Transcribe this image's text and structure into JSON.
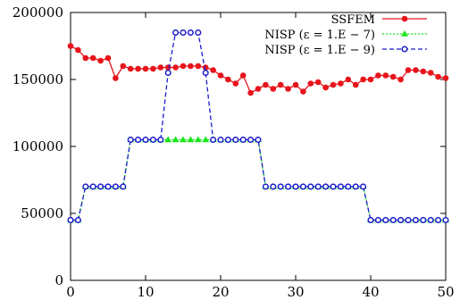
{
  "chart_data": {
    "type": "line",
    "title": "",
    "xlabel": "",
    "ylabel": "",
    "xlim": [
      0,
      50
    ],
    "ylim": [
      0,
      200000
    ],
    "xticks": [
      0,
      10,
      20,
      30,
      40,
      50
    ],
    "yticks": [
      0,
      50000,
      100000,
      150000,
      200000
    ],
    "xtick_labels": [
      "0",
      "10",
      "20",
      "30",
      "40",
      "50"
    ],
    "ytick_labels": [
      "0",
      "50000",
      "100000",
      "150000",
      "200000"
    ],
    "grid": false,
    "legend_position": "top-right",
    "series": [
      {
        "name": "SSFEM",
        "color": "#e8141c",
        "marker": "filled-circle",
        "line": "solid",
        "x": [
          0,
          1,
          2,
          3,
          4,
          5,
          6,
          7,
          8,
          9,
          10,
          11,
          12,
          13,
          14,
          15,
          16,
          17,
          18,
          19,
          20,
          21,
          22,
          23,
          24,
          25,
          26,
          27,
          28,
          29,
          30,
          31,
          32,
          33,
          34,
          35,
          36,
          37,
          38,
          39,
          40,
          41,
          42,
          43,
          44,
          45,
          46,
          47,
          48,
          49,
          50
        ],
        "y": [
          175000,
          172000,
          166000,
          166000,
          164000,
          166000,
          151000,
          160000,
          158000,
          158000,
          158000,
          158000,
          159000,
          159000,
          159000,
          160000,
          160000,
          160000,
          159000,
          157000,
          153000,
          150000,
          147000,
          153000,
          140000,
          143000,
          146000,
          143000,
          146000,
          143000,
          146000,
          141000,
          147000,
          148000,
          144000,
          146000,
          147000,
          150000,
          146000,
          150000,
          150000,
          153000,
          153000,
          152000,
          150000,
          157000,
          157000,
          156000,
          155000,
          152000,
          151000
        ]
      },
      {
        "name": "NISP (ε = 1.E − 7)",
        "color": "#19e619",
        "marker": "filled-triangle",
        "line": "dotted",
        "x": [
          0,
          1,
          2,
          3,
          4,
          5,
          6,
          7,
          8,
          9,
          10,
          11,
          12,
          13,
          14,
          15,
          16,
          17,
          18,
          19,
          20,
          21,
          22,
          23,
          24,
          25,
          26,
          27,
          28,
          29,
          30,
          31,
          32,
          33,
          34,
          35,
          36,
          37,
          38,
          39,
          40,
          41,
          42,
          43,
          44,
          45,
          46,
          47,
          48,
          49,
          50
        ],
        "y": [
          45000,
          45000,
          70000,
          70000,
          70000,
          70000,
          70000,
          70000,
          105000,
          105000,
          105000,
          105000,
          105000,
          105000,
          105000,
          105000,
          105000,
          105000,
          105000,
          105000,
          105000,
          105000,
          105000,
          105000,
          105000,
          105000,
          70000,
          70000,
          70000,
          70000,
          70000,
          70000,
          70000,
          70000,
          70000,
          70000,
          70000,
          70000,
          70000,
          70000,
          45000,
          45000,
          45000,
          45000,
          45000,
          45000,
          45000,
          45000,
          45000,
          45000,
          45000
        ]
      },
      {
        "name": "NISP (ε = 1.E − 9)",
        "color": "#1a1acc",
        "marker": "open-circle",
        "line": "dashed",
        "x": [
          0,
          1,
          2,
          3,
          4,
          5,
          6,
          7,
          8,
          9,
          10,
          11,
          12,
          13,
          14,
          15,
          16,
          17,
          18,
          19,
          20,
          21,
          22,
          23,
          24,
          25,
          26,
          27,
          28,
          29,
          30,
          31,
          32,
          33,
          34,
          35,
          36,
          37,
          38,
          39,
          40,
          41,
          42,
          43,
          44,
          45,
          46,
          47,
          48,
          49,
          50
        ],
        "y": [
          45000,
          45000,
          70000,
          70000,
          70000,
          70000,
          70000,
          70000,
          105000,
          105000,
          105000,
          105000,
          105000,
          155000,
          185000,
          185000,
          185000,
          185000,
          155000,
          105000,
          105000,
          105000,
          105000,
          105000,
          105000,
          105000,
          70000,
          70000,
          70000,
          70000,
          70000,
          70000,
          70000,
          70000,
          70000,
          70000,
          70000,
          70000,
          70000,
          70000,
          45000,
          45000,
          45000,
          45000,
          45000,
          45000,
          45000,
          45000,
          45000,
          45000,
          45000
        ]
      }
    ]
  }
}
